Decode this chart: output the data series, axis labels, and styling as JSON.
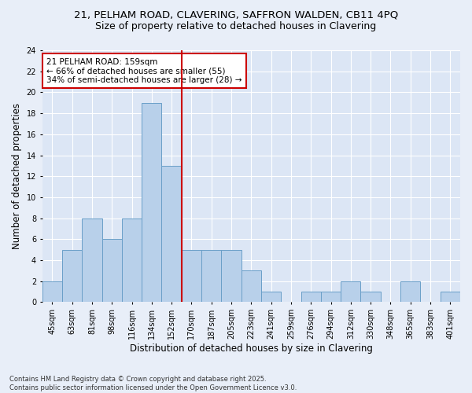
{
  "title_line1": "21, PELHAM ROAD, CLAVERING, SAFFRON WALDEN, CB11 4PQ",
  "title_line2": "Size of property relative to detached houses in Clavering",
  "xlabel": "Distribution of detached houses by size in Clavering",
  "ylabel": "Number of detached properties",
  "categories": [
    "45sqm",
    "63sqm",
    "81sqm",
    "98sqm",
    "116sqm",
    "134sqm",
    "152sqm",
    "170sqm",
    "187sqm",
    "205sqm",
    "223sqm",
    "241sqm",
    "259sqm",
    "276sqm",
    "294sqm",
    "312sqm",
    "330sqm",
    "348sqm",
    "365sqm",
    "383sqm",
    "401sqm"
  ],
  "values": [
    2,
    5,
    8,
    6,
    8,
    19,
    13,
    5,
    5,
    5,
    3,
    1,
    0,
    1,
    1,
    2,
    1,
    0,
    2,
    0,
    1
  ],
  "bar_color": "#b8d0ea",
  "bar_edge_color": "#6a9fc8",
  "vline_x_index": 6,
  "vline_color": "#cc0000",
  "ylim": [
    0,
    24
  ],
  "yticks": [
    0,
    2,
    4,
    6,
    8,
    10,
    12,
    14,
    16,
    18,
    20,
    22,
    24
  ],
  "annotation_title": "21 PELHAM ROAD: 159sqm",
  "annotation_line1": "← 66% of detached houses are smaller (55)",
  "annotation_line2": "34% of semi-detached houses are larger (28) →",
  "annotation_box_color": "#ffffff",
  "annotation_edge_color": "#cc0000",
  "bg_color": "#e8eef8",
  "plot_bg_color": "#dce6f5",
  "footer_line1": "Contains HM Land Registry data © Crown copyright and database right 2025.",
  "footer_line2": "Contains public sector information licensed under the Open Government Licence v3.0.",
  "title_fontsize": 9.5,
  "subtitle_fontsize": 9,
  "label_fontsize": 8.5,
  "tick_fontsize": 7,
  "annot_fontsize": 7.5,
  "footer_fontsize": 6
}
